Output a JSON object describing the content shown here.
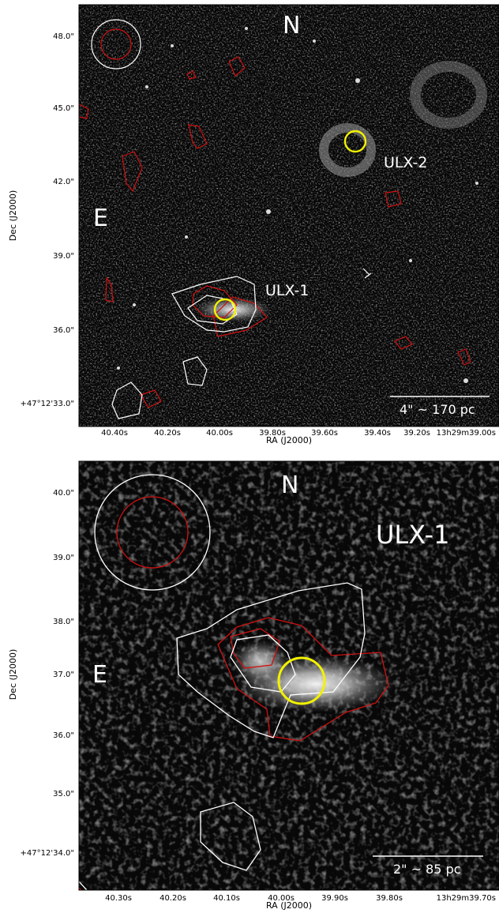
{
  "panels": [
    {
      "id": "top",
      "ylabel": "Dec (J2000)",
      "xlabel": "RA (J2000)",
      "y_ticks": [
        "48.0\"",
        "45.0\"",
        "42.0\"",
        "39.0\"",
        "36.0\"",
        "+47°12'33.0\""
      ],
      "x_ticks": [
        "40.40s",
        "40.20s",
        "40.00s",
        "39.80s",
        "39.60s",
        "39.40s",
        "39.20s",
        "13h29m39.00s"
      ],
      "labels": {
        "north": "N",
        "east": "E",
        "source1": "ULX-1",
        "source2": "ULX-2"
      },
      "scalebar": "4\" ~ 170 pc"
    },
    {
      "id": "bottom",
      "ylabel": "Dec (J2000)",
      "xlabel": "RA (J2000)",
      "y_ticks": [
        "40.0\"",
        "39.0\"",
        "38.0\"",
        "37.0\"",
        "36.0\"",
        "35.0\"",
        "+47°12'34.0\""
      ],
      "x_ticks": [
        "40.30s",
        "40.20s",
        "40.10s",
        "40.00s",
        "39.90s",
        "39.80s",
        "13h29m39.70s"
      ],
      "labels": {
        "north": "N",
        "east": "E",
        "source1": "ULX-1"
      },
      "scalebar": "2\" ~ 85 pc"
    }
  ],
  "colors": {
    "contour_red": "#d01010",
    "contour_white": "#ffffff",
    "marker_yellow": "#f2f200"
  }
}
